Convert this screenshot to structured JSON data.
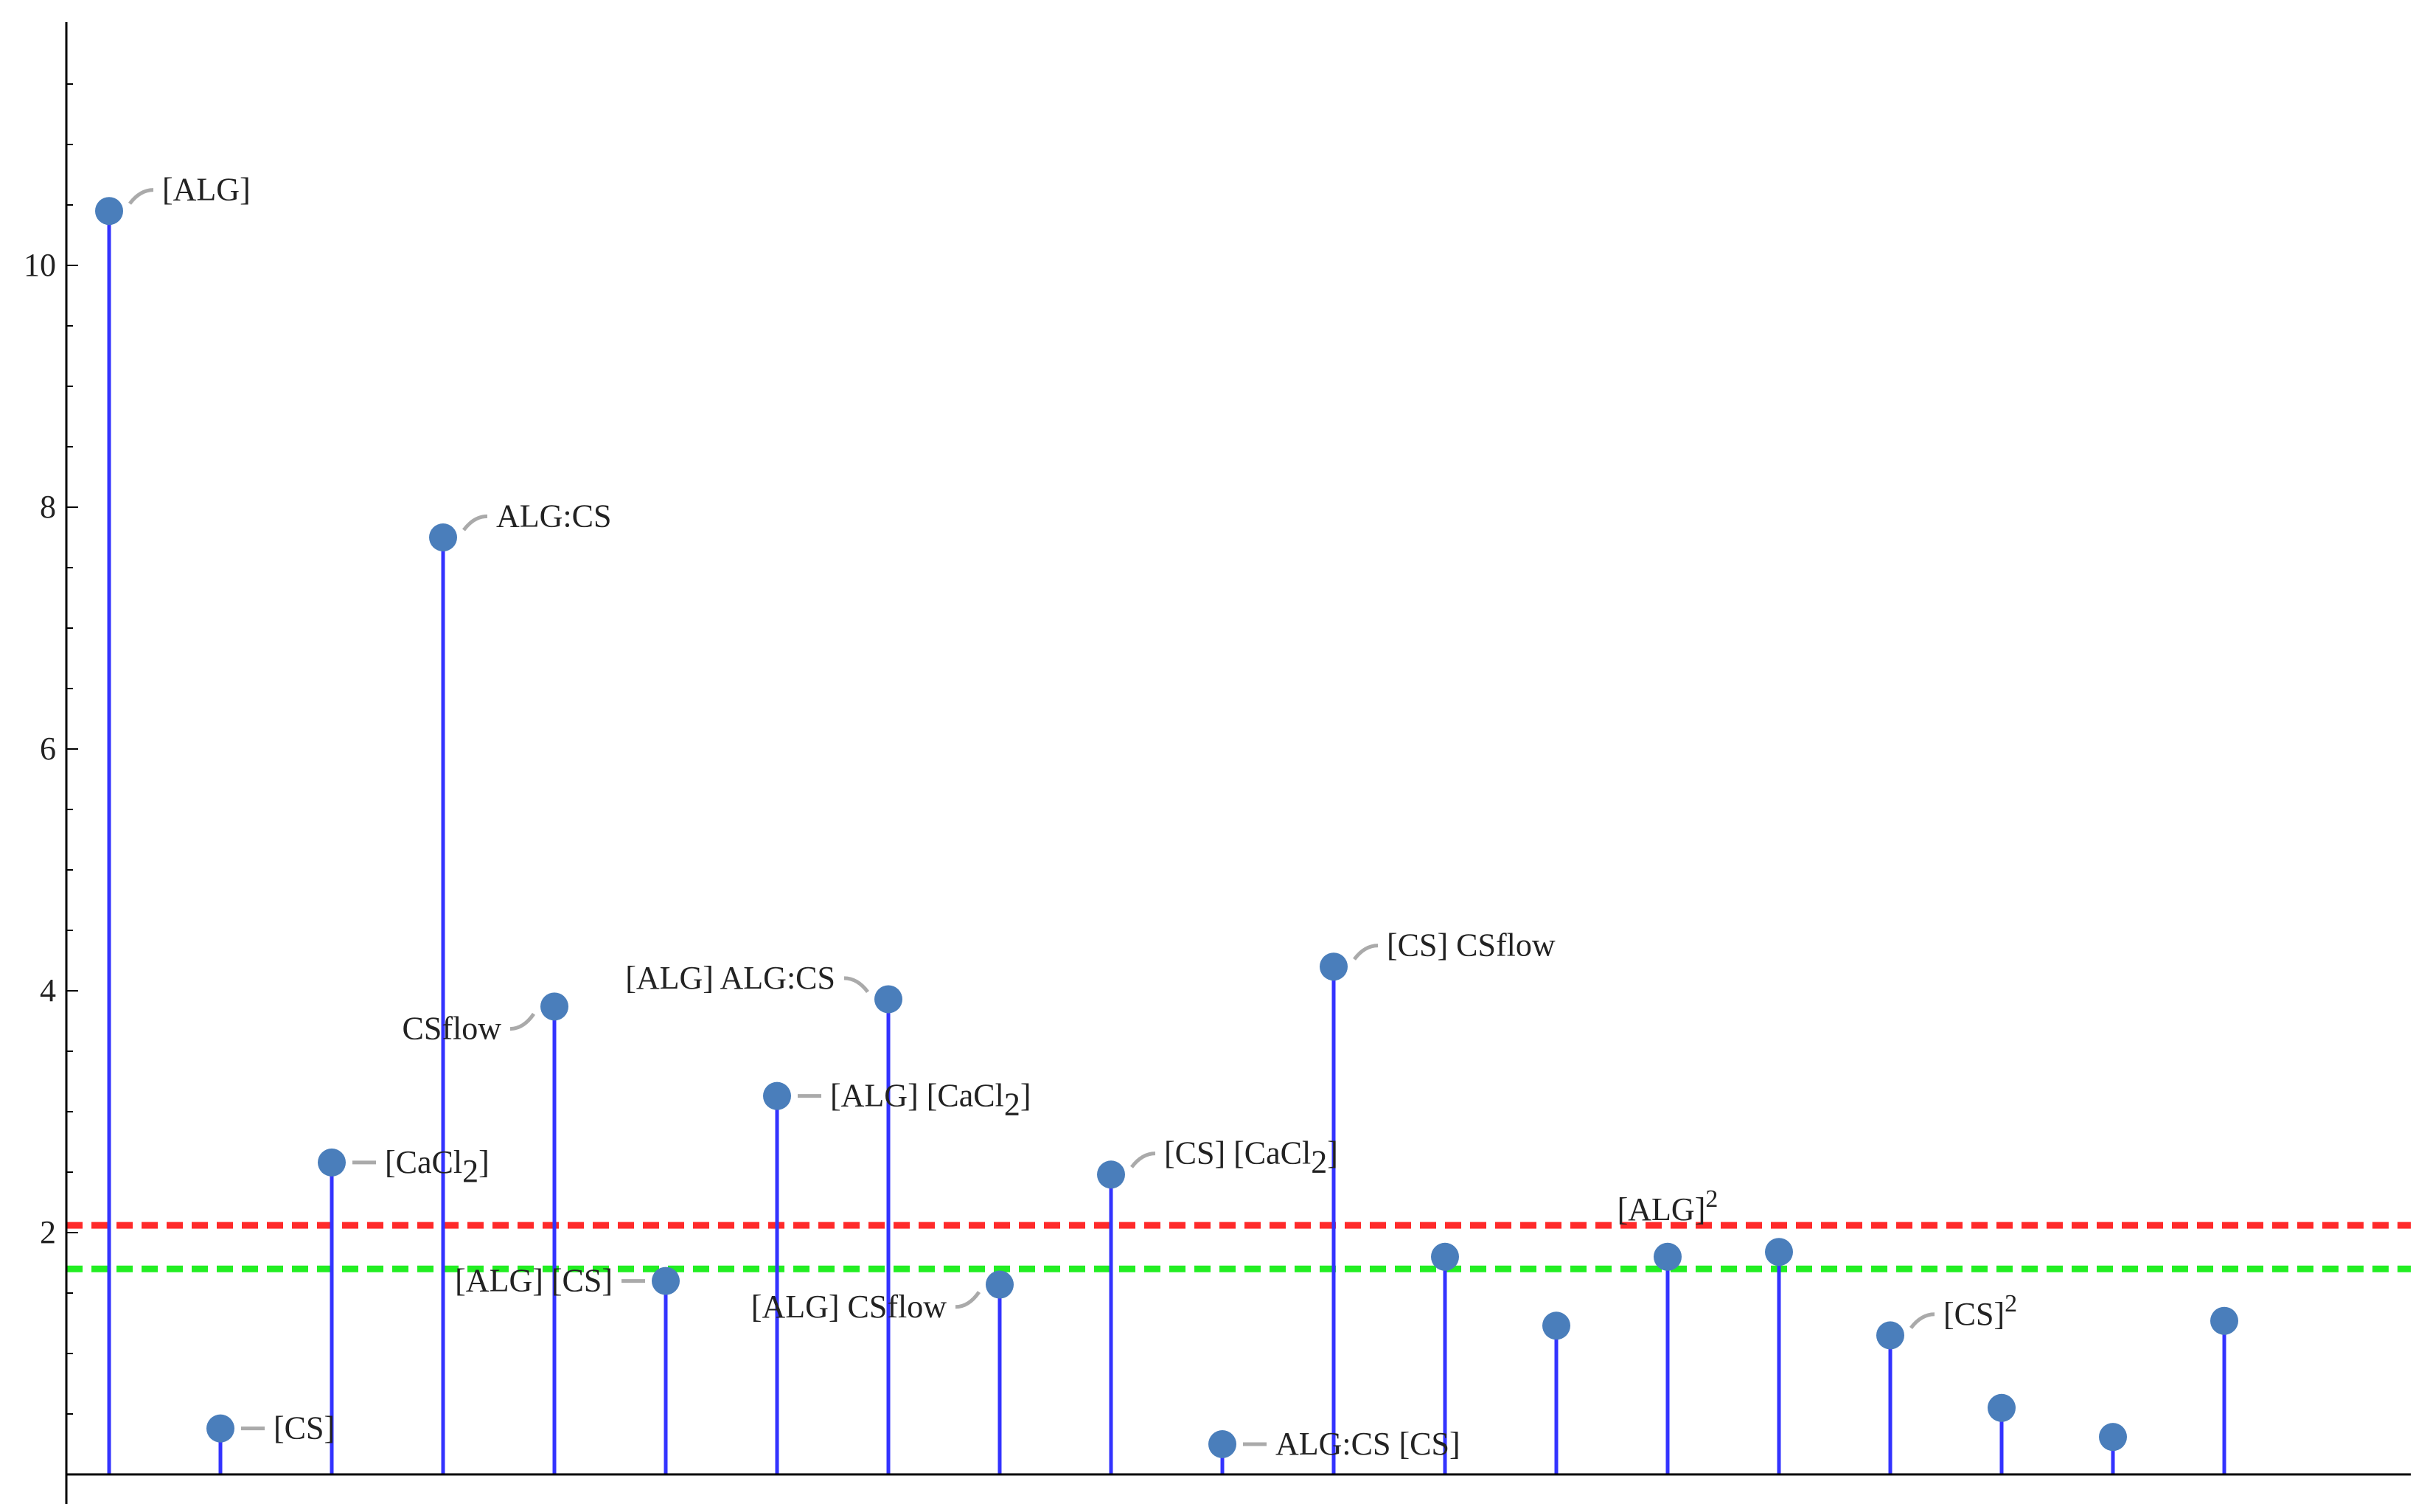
{
  "chart_data": {
    "type": "stem",
    "title": "",
    "xlabel": "",
    "ylabel": "",
    "ylim": [
      0,
      12
    ],
    "yticks": [
      2,
      4,
      6,
      8,
      10
    ],
    "x": [
      1,
      2,
      3,
      4,
      5,
      6,
      7,
      8,
      9,
      10,
      11,
      12,
      13,
      14,
      15,
      16,
      17,
      18,
      19,
      20
    ],
    "values": [
      10.45,
      0.38,
      2.58,
      7.75,
      3.87,
      1.6,
      3.13,
      3.93,
      1.57,
      2.48,
      0.25,
      4.2,
      1.8,
      1.23,
      1.8,
      1.84,
      1.15,
      0.55,
      0.31,
      1.27
    ],
    "labels": [
      "[ALG]",
      "[CS]",
      "[CaCl2]",
      "ALG:CS",
      "CSflow",
      "[ALG] [CS]",
      "[ALG] [CaCl2]",
      "[ALG] ALG:CS",
      "[ALG] CSflow",
      "[CS] [CaCl2]",
      "ALG:CS [CS]",
      "[CS] CSflow",
      "",
      "",
      "[ALG]2",
      "",
      "[CS]2",
      "",
      "",
      ""
    ],
    "thresholds": [
      {
        "value": 2.06,
        "color": "#ff2a2a"
      },
      {
        "value": 1.7,
        "color": "#22ee22"
      }
    ],
    "colors": {
      "stem": "#3333ff",
      "point": "#4a7ebb",
      "leader": "#aaaaaa"
    }
  }
}
